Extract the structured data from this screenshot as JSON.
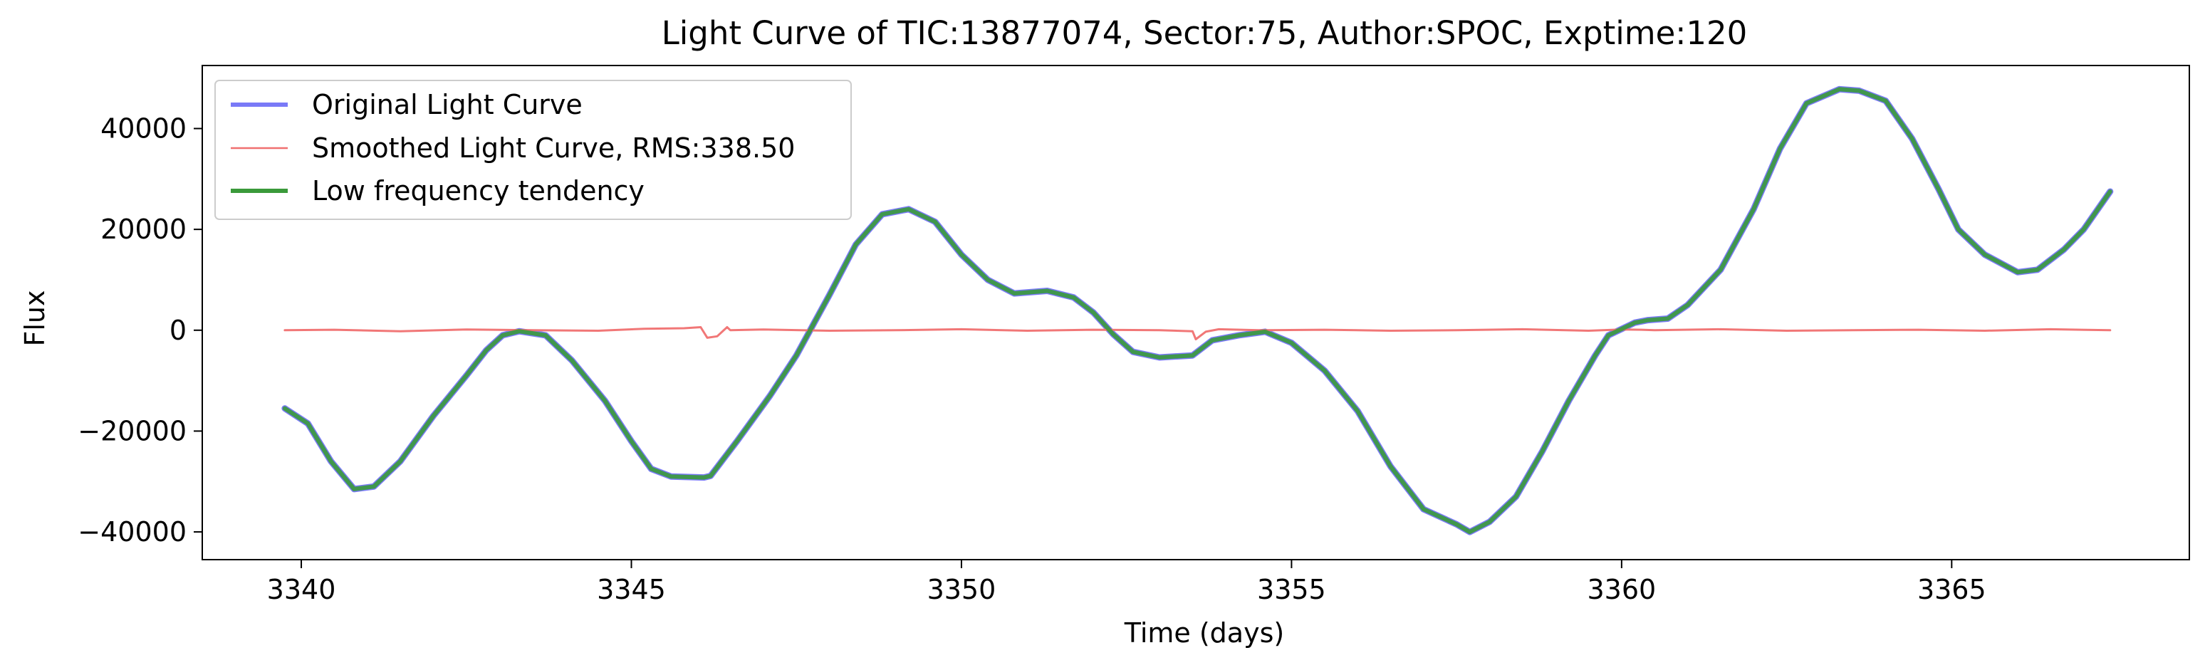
{
  "chart_data": {
    "type": "line",
    "title": "Light Curve of TIC:13877074, Sector:75, Author:SPOC, Exptime:120",
    "xlabel": "Time (days)",
    "ylabel": "Flux",
    "xlim": [
      3338.5,
      3368.6
    ],
    "ylim": [
      -45500,
      52500
    ],
    "xticks": [
      3340,
      3345,
      3350,
      3355,
      3360,
      3365
    ],
    "xtick_labels": [
      "3340",
      "3345",
      "3350",
      "3355",
      "3360",
      "3365"
    ],
    "yticks": [
      -40000,
      -20000,
      0,
      20000,
      40000
    ],
    "ytick_labels": [
      "−40000",
      "−20000",
      "0",
      "20000",
      "40000"
    ],
    "grid": false,
    "legend_placement": "upper-left",
    "series": [
      {
        "name": "Original Light Curve",
        "color": "#7a7af7",
        "style": "thick-line",
        "x": [
          3339.75,
          3340.1,
          3340.45,
          3340.8,
          3341.1,
          3341.5,
          3342.0,
          3342.5,
          3342.8,
          3343.05,
          3343.3,
          3343.7,
          3344.1,
          3344.6,
          3345.0,
          3345.3,
          3345.6,
          3346.1,
          3346.2,
          3346.6,
          3347.1,
          3347.5,
          3348.0,
          3348.4,
          3348.8,
          3349.2,
          3349.6,
          3350.0,
          3350.4,
          3350.8,
          3351.3,
          3351.7,
          3352.0,
          3352.3,
          3352.6,
          3353.0,
          3353.5,
          3353.8,
          3354.2,
          3354.6,
          3355.0,
          3355.5,
          3356.0,
          3356.5,
          3357.0,
          3357.5,
          3357.7,
          3358.0,
          3358.4,
          3358.8,
          3359.2,
          3359.6,
          3359.8,
          3360.2,
          3360.4,
          3360.7,
          3361.0,
          3361.5,
          3362.0,
          3362.4,
          3362.8,
          3363.3,
          3363.6,
          3364.0,
          3364.4,
          3364.8,
          3365.1,
          3365.5,
          3366.0,
          3366.3,
          3366.7,
          3367.0,
          3367.4
        ],
        "values": [
          -15500,
          -18500,
          -26000,
          -31500,
          -31000,
          -26000,
          -17000,
          -9000,
          -4000,
          -1000,
          -200,
          -1000,
          -6000,
          -14000,
          -22000,
          -27500,
          -29000,
          -29200,
          -28900,
          -22000,
          -13000,
          -5000,
          7000,
          17000,
          23000,
          24000,
          21500,
          15000,
          10000,
          7300,
          7800,
          6500,
          3500,
          -800,
          -4300,
          -5400,
          -5000,
          -2000,
          -1000,
          -300,
          -2500,
          -8000,
          -16000,
          -27000,
          -35500,
          -38500,
          -40000,
          -38000,
          -33000,
          -24000,
          -14000,
          -5000,
          -1000,
          1500,
          2000,
          2300,
          5000,
          12000,
          24000,
          36000,
          45000,
          47800,
          47500,
          45500,
          38000,
          28000,
          20000,
          15000,
          11500,
          12000,
          16000,
          20000,
          27500
        ]
      },
      {
        "name": "Smoothed Light Curve, RMS:338.50",
        "color": "#f07070",
        "style": "thin-noisy-line",
        "x": [
          3339.75,
          3340.5,
          3341.5,
          3342.5,
          3343.5,
          3344.5,
          3345.2,
          3345.8,
          3346.05,
          3346.15,
          3346.3,
          3346.45,
          3346.5,
          3347.0,
          3348.0,
          3349.0,
          3350.0,
          3351.0,
          3352.0,
          3353.0,
          3353.5,
          3353.55,
          3353.7,
          3353.9,
          3354.5,
          3355.5,
          3356.5,
          3357.5,
          3358.5,
          3359.5,
          3360.0,
          3360.3,
          3360.5,
          3361.5,
          3362.5,
          3363.5,
          3364.5,
          3365.5,
          3366.5,
          3367.4
        ],
        "values": [
          0,
          100,
          -200,
          150,
          0,
          -100,
          300,
          400,
          600,
          -1500,
          -1200,
          600,
          0,
          150,
          -100,
          0,
          200,
          -100,
          100,
          0,
          -200,
          -1800,
          -300,
          200,
          0,
          100,
          -100,
          0,
          200,
          -100,
          150,
          100,
          0,
          200,
          -100,
          0,
          100,
          -100,
          200,
          0
        ]
      },
      {
        "name": "Low frequency tendency",
        "color": "#3a9a3a",
        "style": "line",
        "x": [
          3339.75,
          3340.1,
          3340.45,
          3340.8,
          3341.1,
          3341.5,
          3342.0,
          3342.5,
          3342.8,
          3343.05,
          3343.3,
          3343.7,
          3344.1,
          3344.6,
          3345.0,
          3345.3,
          3345.6,
          3346.1,
          3346.2,
          3346.6,
          3347.1,
          3347.5,
          3348.0,
          3348.4,
          3348.8,
          3349.2,
          3349.6,
          3350.0,
          3350.4,
          3350.8,
          3351.3,
          3351.7,
          3352.0,
          3352.3,
          3352.6,
          3353.0,
          3353.5,
          3353.8,
          3354.2,
          3354.6,
          3355.0,
          3355.5,
          3356.0,
          3356.5,
          3357.0,
          3357.5,
          3357.7,
          3358.0,
          3358.4,
          3358.8,
          3359.2,
          3359.6,
          3359.8,
          3360.2,
          3360.4,
          3360.7,
          3361.0,
          3361.5,
          3362.0,
          3362.4,
          3362.8,
          3363.3,
          3363.6,
          3364.0,
          3364.4,
          3364.8,
          3365.1,
          3365.5,
          3366.0,
          3366.3,
          3366.7,
          3367.0,
          3367.4
        ],
        "values": [
          -15500,
          -18500,
          -26000,
          -31500,
          -31000,
          -26000,
          -17000,
          -9000,
          -4000,
          -1000,
          -200,
          -1000,
          -6000,
          -14000,
          -22000,
          -27500,
          -29000,
          -29200,
          -28900,
          -22000,
          -13000,
          -5000,
          7000,
          17000,
          23000,
          24000,
          21500,
          15000,
          10000,
          7300,
          7800,
          6500,
          3500,
          -800,
          -4300,
          -5400,
          -5000,
          -2000,
          -1000,
          -300,
          -2500,
          -8000,
          -16000,
          -27000,
          -35500,
          -38500,
          -40000,
          -38000,
          -33000,
          -24000,
          -14000,
          -5000,
          -1000,
          1500,
          2000,
          2300,
          5000,
          12000,
          24000,
          36000,
          45000,
          47800,
          47500,
          45500,
          38000,
          28000,
          20000,
          15000,
          11500,
          12000,
          16000,
          20000,
          27500
        ]
      }
    ]
  }
}
